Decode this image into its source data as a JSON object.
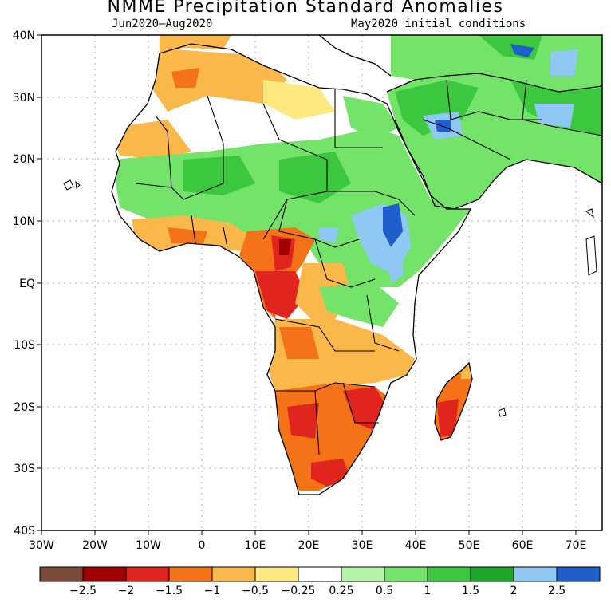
{
  "title": "NMME Precipitation Standard Anomalies",
  "period": "Jun2020–Aug2020",
  "initial_conditions": "May2020 initial conditions",
  "map": {
    "region": "Africa and Arabian Peninsula",
    "lon_range": [
      -30,
      75
    ],
    "lat_range": [
      -40,
      40
    ],
    "lat_labels": [
      "40N",
      "30N",
      "20N",
      "10N",
      "EQ",
      "10S",
      "20S",
      "30S",
      "40S"
    ],
    "lon_labels": [
      "30W",
      "20W",
      "10W",
      "0",
      "10E",
      "20E",
      "30E",
      "40E",
      "50E",
      "60E",
      "70E"
    ]
  },
  "colorbar": {
    "colors": [
      "#7b4a3a",
      "#a00000",
      "#e0241e",
      "#f57318",
      "#fbb84a",
      "#fee880",
      "#ffffff",
      "#b5f5a8",
      "#73e36a",
      "#3bc83f",
      "#1ea628",
      "#8fc8f2",
      "#1e5fcc"
    ],
    "labels": [
      "−2.5",
      "−2",
      "−1.5",
      "−1",
      "−0.5",
      "−0.25",
      "0.25",
      "0.5",
      "1",
      "1.5",
      "2",
      "2.5"
    ]
  }
}
